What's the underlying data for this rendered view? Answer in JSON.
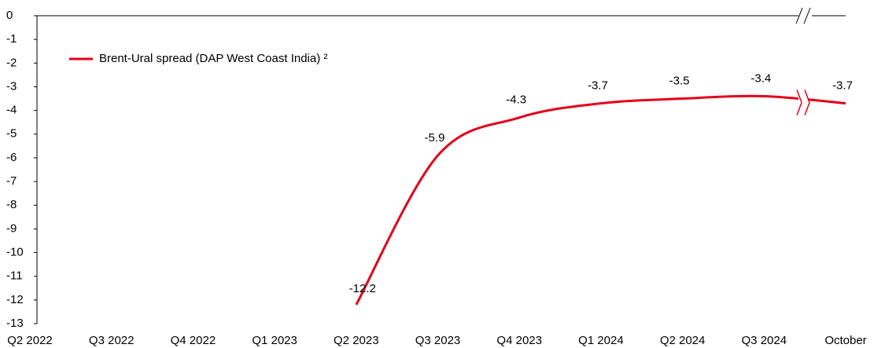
{
  "chart_data": {
    "type": "line",
    "categories": [
      "Q2 2022",
      "Q3 2022",
      "Q4 2022",
      "Q1 2023",
      "Q2 2023",
      "Q3 2023",
      "Q4 2023",
      "Q1 2024",
      "Q2 2024",
      "Q3 2024",
      "October"
    ],
    "series": [
      {
        "name": "Brent-Ural spread (DAP West Coast India) ²",
        "color": "#e3001b",
        "values": [
          null,
          null,
          null,
          null,
          -12.2,
          -5.9,
          -4.3,
          -3.7,
          -3.5,
          -3.4,
          -3.7
        ]
      }
    ],
    "ylim": [
      -13,
      0
    ],
    "yticks": [
      0,
      -1,
      -2,
      -3,
      -4,
      -5,
      -6,
      -7,
      -8,
      -9,
      -10,
      -11,
      -12,
      -13
    ],
    "legend": "upper left",
    "grid": false
  }
}
